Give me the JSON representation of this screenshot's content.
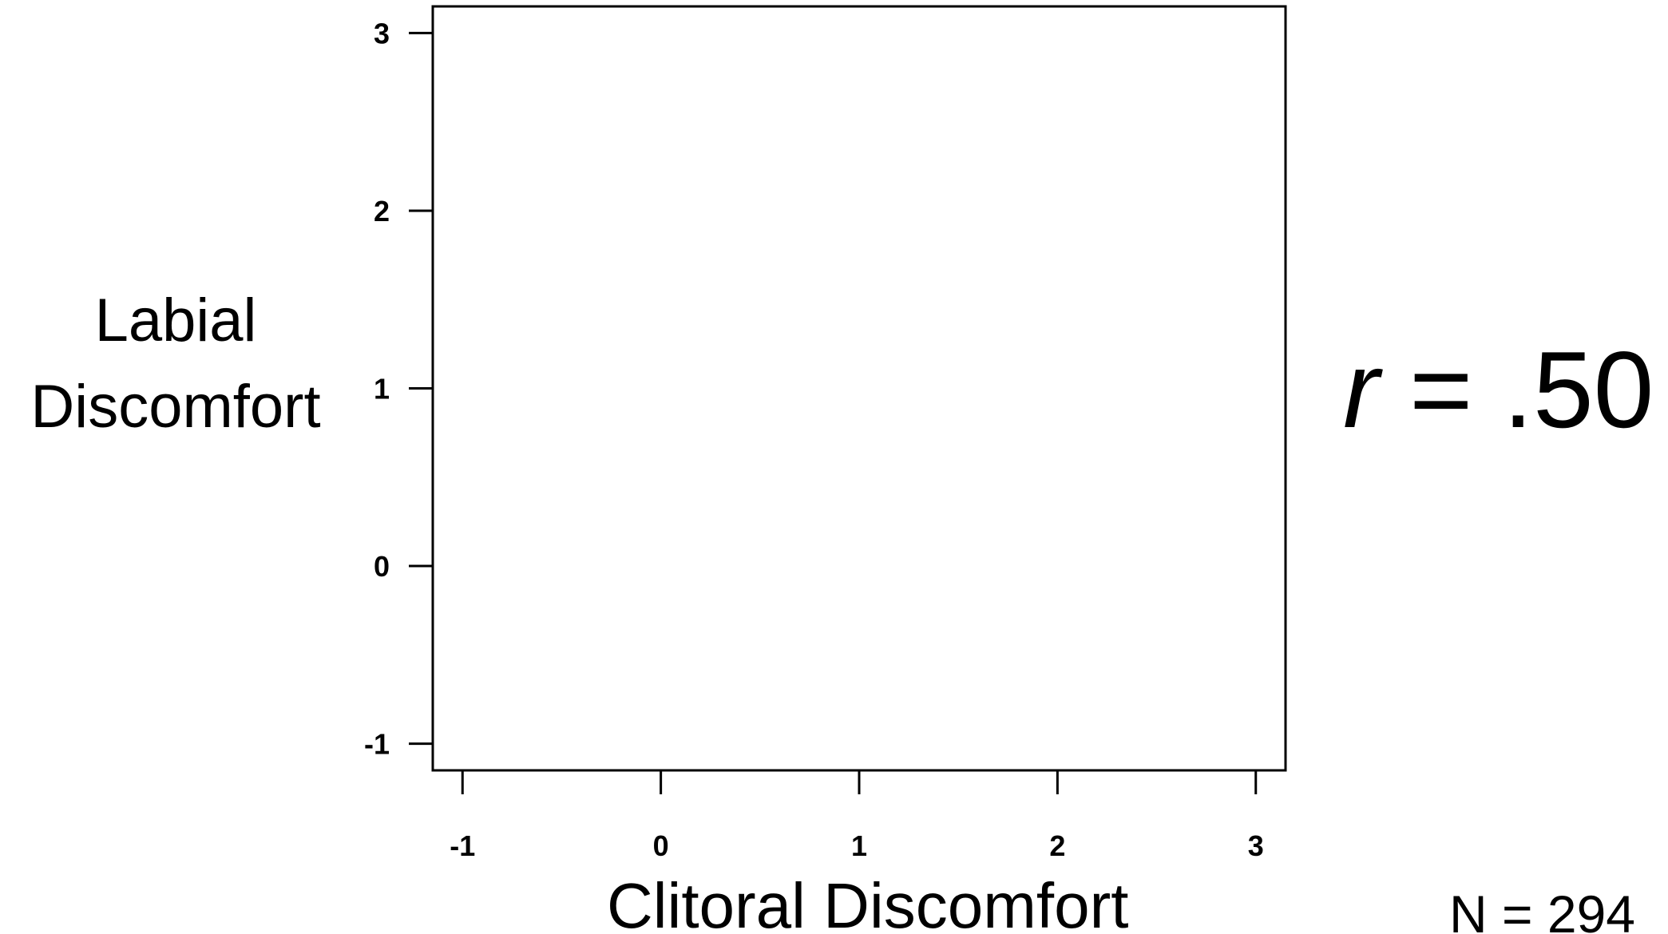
{
  "chart_data": {
    "type": "scatter",
    "title": "",
    "xlabel": "Clitoral Discomfort",
    "ylabel_lines": [
      "Labial",
      "Discomfort"
    ],
    "xlim": [
      -1.15,
      3.15
    ],
    "ylim": [
      -1.15,
      3.15
    ],
    "x_ticks": [
      -1,
      0,
      1,
      2,
      3
    ],
    "y_ticks": [
      -1,
      0,
      1,
      2,
      3
    ],
    "x_tick_labels": [
      "-1",
      "0",
      "1",
      "2",
      "3"
    ],
    "y_tick_labels": [
      "-1",
      "0",
      "1",
      "2",
      "3"
    ],
    "points": [],
    "grid": false,
    "annotations": {
      "r_symbol": "r",
      "r_value": " = .50",
      "n_text": "N = 294"
    }
  }
}
